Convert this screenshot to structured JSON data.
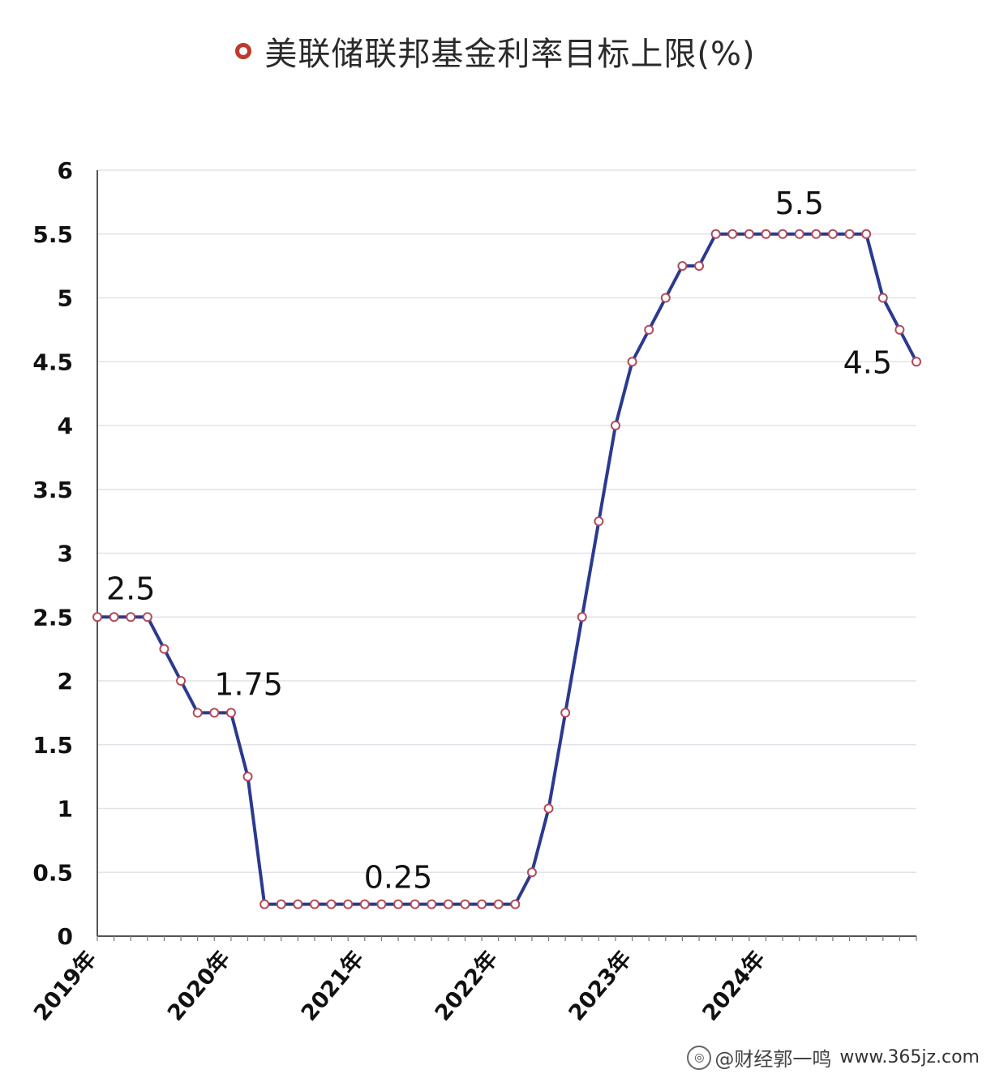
{
  "chart_data": {
    "type": "line",
    "title": "美联储联邦基金利率目标上限(%)",
    "ylim": [
      0,
      6
    ],
    "yticks": [
      "0",
      "0.5",
      "1",
      "1.5",
      "2",
      "2.5",
      "3",
      "3.5",
      "4",
      "4.5",
      "5",
      "5.5",
      "6"
    ],
    "xtick_labels": [
      "2019年",
      "2020年",
      "2021年",
      "2022年",
      "2023年",
      "2024年"
    ],
    "grid": "horizontal",
    "line_color": "#2b3a8f",
    "marker_color": "#b04a5a",
    "series": [
      {
        "values": [
          2.5,
          2.5,
          2.5,
          2.5,
          2.25,
          2.0,
          1.75,
          1.75,
          1.75,
          1.25,
          0.25,
          0.25,
          0.25,
          0.25,
          0.25,
          0.25,
          0.25,
          0.25,
          0.25,
          0.25,
          0.25,
          0.25,
          0.25,
          0.25,
          0.25,
          0.25,
          0.5,
          1.0,
          1.75,
          2.5,
          3.25,
          4.0,
          4.5,
          4.75,
          5.0,
          5.25,
          5.25,
          5.5,
          5.5,
          5.5,
          5.5,
          5.5,
          5.5,
          5.5,
          5.5,
          5.5,
          5.5,
          5.0,
          4.75,
          4.5
        ]
      }
    ],
    "annotations": [
      "2.5",
      "1.75",
      "0.25",
      "5.5",
      "4.5"
    ]
  },
  "watermark": {
    "icon": "camera-icon",
    "text": "@财经郭一鸣",
    "site": "www.365jz.com"
  }
}
